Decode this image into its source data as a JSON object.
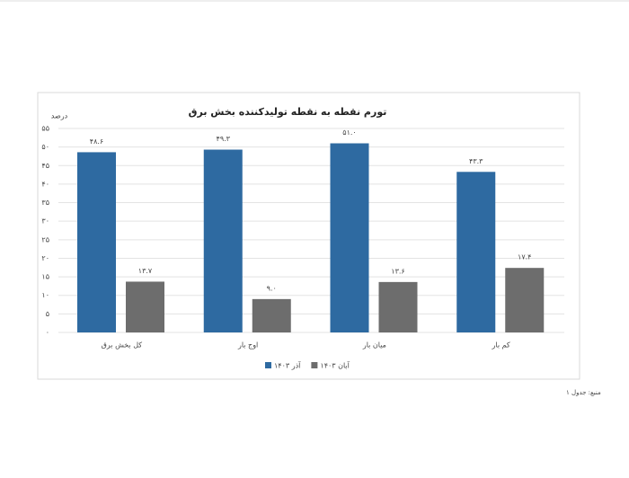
{
  "chart_data": {
    "type": "bar",
    "title": "تورم نقطه به نقطه تولیدکننده بخش برق",
    "y_label": "درصد",
    "categories": [
      "کل بخش برق",
      "اوج بار",
      "میان بار",
      "کم بار"
    ],
    "series": [
      {
        "name": "آذر ۱۴۰۳",
        "color": "#2e6aa1",
        "values": [
          48.6,
          49.3,
          51.0,
          43.3
        ],
        "value_labels": [
          "۴۸.۶",
          "۴۹.۳",
          "۵۱.۰",
          "۴۳.۳"
        ]
      },
      {
        "name": "آبان ۱۴۰۳",
        "color": "#6d6d6d",
        "values": [
          13.7,
          9.0,
          13.6,
          17.4
        ],
        "value_labels": [
          "۱۳.۷",
          "۹.۰",
          "۱۳.۶",
          "۱۷.۴"
        ]
      }
    ],
    "ylim": [
      0,
      55
    ],
    "yticks": [
      {
        "value": 0,
        "label": "۰"
      },
      {
        "value": 5,
        "label": "۵"
      },
      {
        "value": 10,
        "label": "۱۰"
      },
      {
        "value": 15,
        "label": "۱۵"
      },
      {
        "value": 20,
        "label": "۲۰"
      },
      {
        "value": 25,
        "label": "۲۵"
      },
      {
        "value": 30,
        "label": "۳۰"
      },
      {
        "value": 35,
        "label": "۳۵"
      },
      {
        "value": 40,
        "label": "۴۰"
      },
      {
        "value": 45,
        "label": "۴۵"
      },
      {
        "value": 50,
        "label": "۵۰"
      },
      {
        "value": 55,
        "label": "۵۵"
      }
    ],
    "grid": true,
    "legend": "bottom",
    "source": "منبع: جدول ۱"
  }
}
